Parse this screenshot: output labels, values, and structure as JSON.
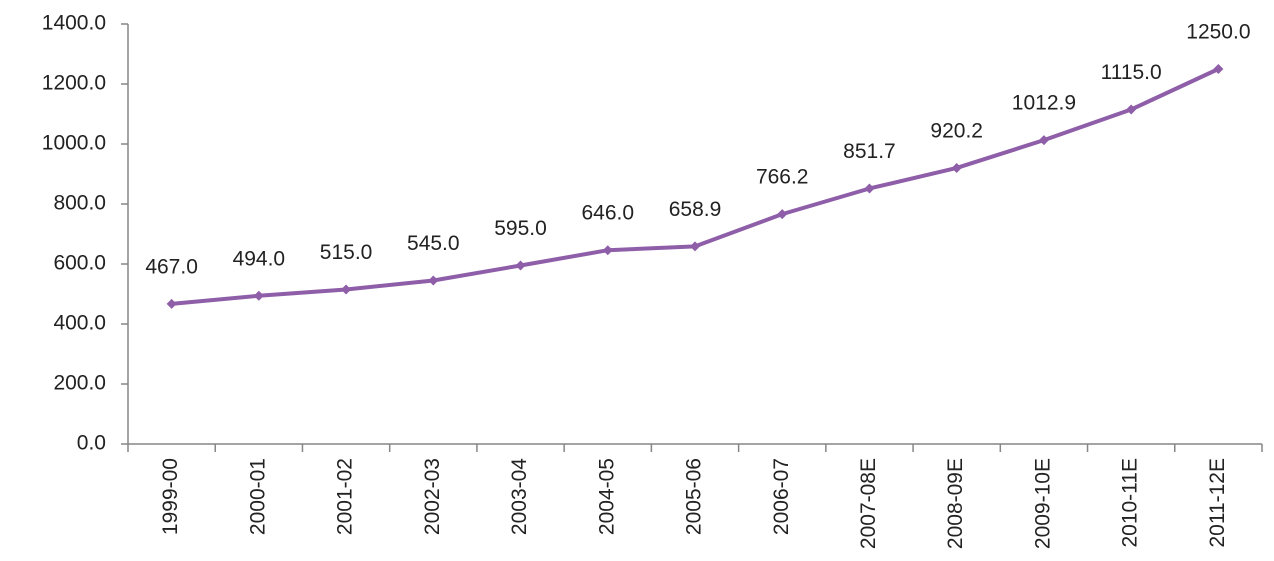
{
  "chart_data": {
    "type": "line",
    "categories": [
      "1999-00",
      "2000-01",
      "2001-02",
      "2002-03",
      "2003-04",
      "2004-05",
      "2005-06",
      "2006-07",
      "2007-08E",
      "2008-09E",
      "2009-10E",
      "2010-11E",
      "2011-12E"
    ],
    "series": [
      {
        "color": "#8e5ea8",
        "values": [
          467.0,
          494.0,
          515.0,
          545.0,
          595.0,
          646.0,
          658.9,
          766.2,
          851.7,
          920.2,
          1012.9,
          1115.0,
          1250.0
        ],
        "value_labels": [
          "467.0",
          "494.0",
          "515.0",
          "545.0",
          "595.0",
          "646.0",
          "658.9",
          "766.2",
          "851.7",
          "920.2",
          "1012.9",
          "1115.0",
          "1250.0"
        ]
      }
    ],
    "ylim": [
      0,
      1400
    ],
    "yticks": [
      {
        "value": 0,
        "label": "0.0"
      },
      {
        "value": 200,
        "label": "200.0"
      },
      {
        "value": 400,
        "label": "400.0"
      },
      {
        "value": 600,
        "label": "600.0"
      },
      {
        "value": 800,
        "label": "800.0"
      },
      {
        "value": 1000,
        "label": "1000.0"
      },
      {
        "value": 1200,
        "label": "1200.0"
      },
      {
        "value": 1400,
        "label": "1400.0"
      }
    ],
    "grid": false
  }
}
